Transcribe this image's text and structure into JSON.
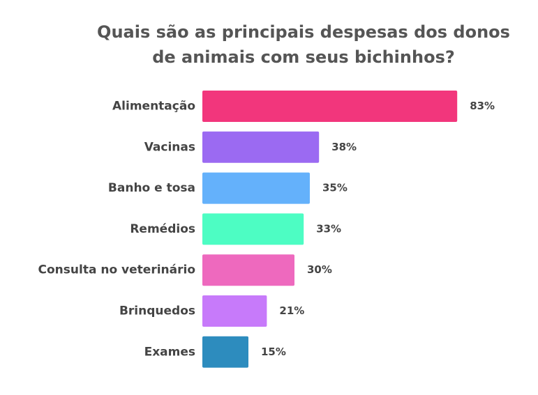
{
  "chart_data": {
    "type": "bar",
    "orientation": "horizontal",
    "title": "Quais são as principais despesas dos donos de animais com seus bichinhos?",
    "title_lines": [
      "Quais são as principais despesas dos donos",
      "de animais com seus bichinhos?"
    ],
    "categories": [
      "Alimentação",
      "Vacinas",
      "Banho e tosa",
      "Remédios",
      "Consulta no veterinário",
      "Brinquedos",
      "Exames"
    ],
    "values": [
      83,
      38,
      35,
      33,
      30,
      21,
      15
    ],
    "value_labels": [
      "83%",
      "38%",
      "35%",
      "33%",
      "30%",
      "21%",
      "15%"
    ],
    "colors": [
      "#f2367c",
      "#9b6af2",
      "#64b1fb",
      "#4dfdc3",
      "#ee69be",
      "#c77afa",
      "#2d8cbe"
    ],
    "xlim": [
      0,
      100
    ],
    "grid": false,
    "legend": "none",
    "xlabel": "",
    "ylabel": ""
  }
}
